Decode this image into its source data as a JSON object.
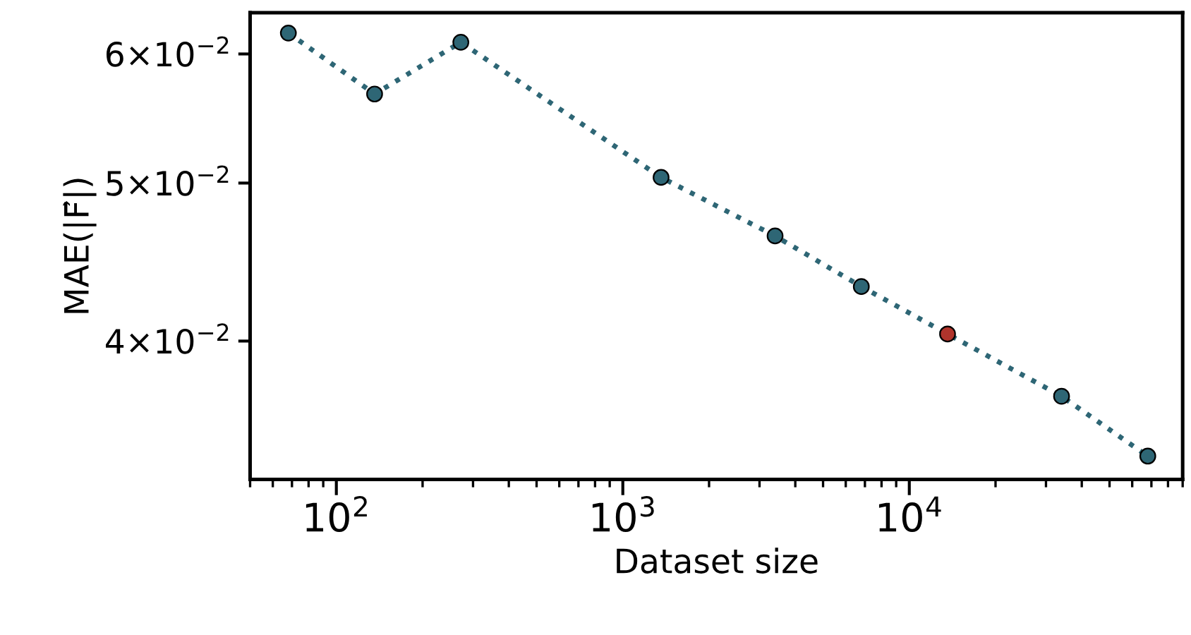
{
  "chart_data": {
    "type": "line",
    "xlabel": "Dataset size",
    "ylabel": "MAE(|F⃗|)",
    "log": "xy",
    "x": [
      68,
      136,
      272,
      1360,
      3400,
      6800,
      13600,
      34000,
      68000
    ],
    "series": [
      {
        "color": "#2e6675",
        "colors": [
          "#2e6675",
          "#2e6675",
          "#2e6675",
          "#2e6675",
          "#2e6675",
          "#2e6675",
          "#b0342c",
          "#2e6675",
          "#2e6675"
        ],
        "values": [
          0.0618,
          0.0567,
          0.061,
          0.0504,
          0.0464,
          0.0432,
          0.0404,
          0.037,
          0.034
        ]
      }
    ],
    "xlim": [
      50,
      90000
    ],
    "ylim": [
      0.0329,
      0.0636
    ],
    "xticks": [
      {
        "value": 100,
        "label": "10$^{2}$"
      },
      {
        "value": 1000,
        "label": "10$^{3}$"
      },
      {
        "value": 10000,
        "label": "10$^{4}$"
      }
    ],
    "yticks": [
      {
        "value": 0.04,
        "label": "4×10$^{−2}$"
      },
      {
        "value": 0.05,
        "label": "5×10$^{−2}$"
      },
      {
        "value": 0.06,
        "label": "6×10$^{−2}$"
      }
    ],
    "marker": "circle",
    "line_style": "dotted",
    "grid": false,
    "legend": false
  }
}
